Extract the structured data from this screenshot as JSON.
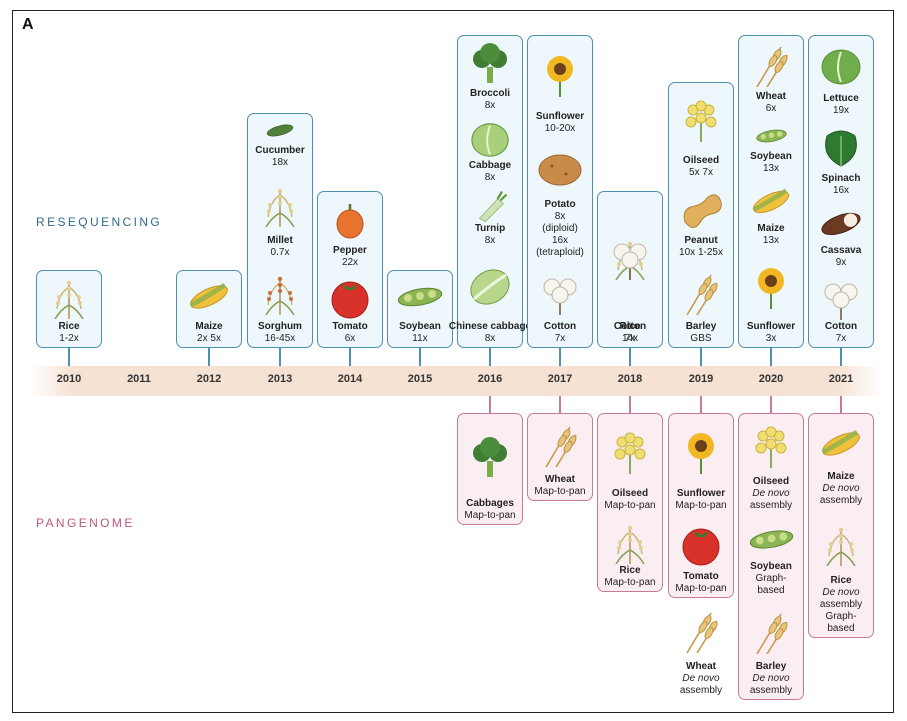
{
  "panel_letter": "A",
  "sections": {
    "resequencing": "RESEQUENCING",
    "pangenome": "PANGENOME"
  },
  "colors": {
    "resequencing_border": "#4f8fb0",
    "resequencing_fill": "#eef7fb",
    "pangenome_border": "#c97a98",
    "pangenome_fill": "#fbeef3",
    "timeline_band": "#f6e2d3"
  },
  "years": [
    "2010",
    "2011",
    "2012",
    "2013",
    "2014",
    "2015",
    "2016",
    "2017",
    "2018",
    "2019",
    "2020",
    "2021"
  ],
  "resequencing": [
    {
      "year": "2010",
      "crops": [
        {
          "name": "Rice",
          "lines": [
            "1-2x"
          ],
          "icon": "rice-icon"
        }
      ]
    },
    {
      "year": "2012",
      "crops": [
        {
          "name": "Maize",
          "lines": [
            "2x   5x"
          ],
          "icon": "maize-icon"
        }
      ]
    },
    {
      "year": "2013",
      "crops": [
        {
          "name": "Cucumber",
          "lines": [
            "18x"
          ],
          "icon": "cucumber-icon"
        },
        {
          "name": "Millet",
          "lines": [
            "0.7x"
          ],
          "icon": "millet-icon"
        },
        {
          "name": "Sorghum",
          "lines": [
            "16-45x"
          ],
          "icon": "sorghum-icon"
        }
      ]
    },
    {
      "year": "2014",
      "crops": [
        {
          "name": "Pepper",
          "lines": [
            "22x"
          ],
          "icon": "pepper-icon"
        },
        {
          "name": "Tomato",
          "lines": [
            "6x"
          ],
          "icon": "tomato-icon"
        }
      ]
    },
    {
      "year": "2015",
      "crops": [
        {
          "name": "Soybean",
          "lines": [
            "11x"
          ],
          "icon": "soybean-icon"
        }
      ]
    },
    {
      "year": "2016",
      "crops": [
        {
          "name": "Broccoli",
          "lines": [
            "8x"
          ],
          "icon": "broccoli-icon"
        },
        {
          "name": "Cabbage",
          "lines": [
            "8x"
          ],
          "icon": "cabbage-icon"
        },
        {
          "name": "Turnip",
          "lines": [
            "8x"
          ],
          "icon": "turnip-icon"
        },
        {
          "name": "Chinese cabbage",
          "lines": [
            "8x"
          ],
          "icon": "chinese-cabbage-icon"
        }
      ]
    },
    {
      "year": "2017",
      "crops": [
        {
          "name": "Sunflower",
          "lines": [
            "10-20x"
          ],
          "icon": "sunflower-icon"
        },
        {
          "name": "Potato",
          "lines": [
            "8x",
            "(diploid)",
            "16x",
            "(tetraploid)"
          ],
          "icon": "potato-icon"
        },
        {
          "name": "Cotton",
          "lines": [
            "7x"
          ],
          "icon": "cotton-icon"
        }
      ]
    },
    {
      "year": "2018",
      "crops": [
        {
          "name": "Rice",
          "lines": [
            "14x"
          ],
          "icon": "rice-icon"
        },
        {
          "name": "Cotton",
          "lines": [
            "7x"
          ],
          "icon": "cotton-icon"
        }
      ]
    },
    {
      "year": "2019",
      "crops": [
        {
          "name": "Oilseed",
          "lines": [
            "5x   7x"
          ],
          "icon": "oilseed-icon"
        },
        {
          "name": "Peanut",
          "lines": [
            "10x   1-25x"
          ],
          "icon": "peanut-icon"
        },
        {
          "name": "Barley",
          "lines": [
            "GBS"
          ],
          "icon": "barley-icon"
        }
      ]
    },
    {
      "year": "2020",
      "crops": [
        {
          "name": "Wheat",
          "lines": [
            "6x"
          ],
          "icon": "wheat-icon"
        },
        {
          "name": "Soybean",
          "lines": [
            "13x"
          ],
          "icon": "soybean-icon"
        },
        {
          "name": "Maize",
          "lines": [
            "13x"
          ],
          "icon": "maize-icon"
        },
        {
          "name": "Sunflower",
          "lines": [
            "3x"
          ],
          "icon": "sunflower-icon"
        }
      ]
    },
    {
      "year": "2021",
      "crops": [
        {
          "name": "Lettuce",
          "lines": [
            "19x"
          ],
          "icon": "lettuce-icon"
        },
        {
          "name": "Spinach",
          "lines": [
            "16x"
          ],
          "icon": "spinach-icon"
        },
        {
          "name": "Cassava",
          "lines": [
            "9x"
          ],
          "icon": "cassava-icon"
        },
        {
          "name": "Cotton",
          "lines": [
            "7x"
          ],
          "icon": "cotton-icon"
        }
      ]
    }
  ],
  "pangenome": [
    {
      "year": "2016",
      "crops": [
        {
          "name": "Cabbages",
          "lines": [
            "Map-to-pan"
          ],
          "icon": "broccoli-cabbage-icon"
        }
      ]
    },
    {
      "year": "2017",
      "crops": [
        {
          "name": "Wheat",
          "lines": [
            "Map-to-pan"
          ],
          "icon": "wheat-icon"
        }
      ]
    },
    {
      "year": "2018",
      "crops": [
        {
          "name": "Oilseed",
          "lines": [
            "Map-to-pan"
          ],
          "icon": "oilseed-icon"
        },
        {
          "name": "Rice",
          "lines": [
            "Map-to-pan"
          ],
          "icon": "rice-icon"
        }
      ]
    },
    {
      "year": "2019",
      "crops": [
        {
          "name": "Sunflower",
          "lines": [
            "Map-to-pan"
          ],
          "icon": "sunflower-icon"
        },
        {
          "name": "Tomato",
          "lines": [
            "Map-to-pan"
          ],
          "icon": "tomato-icon"
        },
        {
          "name": "Wheat",
          "lines": [
            "De novo",
            "assembly"
          ],
          "italic": [
            0
          ],
          "icon": "wheat-icon"
        }
      ]
    },
    {
      "year": "2020",
      "crops": [
        {
          "name": "Oilseed",
          "lines": [
            "De novo",
            "assembly"
          ],
          "italic": [
            0
          ],
          "icon": "oilseed-icon"
        },
        {
          "name": "Soybean",
          "lines": [
            "Graph-",
            "based"
          ],
          "icon": "soybean-icon"
        },
        {
          "name": "Barley",
          "lines": [
            "De novo",
            "assembly"
          ],
          "italic": [
            0
          ],
          "icon": "barley-icon"
        }
      ]
    },
    {
      "year": "2021",
      "crops": [
        {
          "name": "Maize",
          "lines": [
            "De novo",
            "assembly"
          ],
          "italic": [
            0
          ],
          "icon": "maize-icon"
        },
        {
          "name": "Rice",
          "lines": [
            "De novo",
            "assembly",
            "Graph-",
            "based"
          ],
          "italic": [
            0
          ],
          "icon": "rice-icon"
        }
      ]
    }
  ]
}
